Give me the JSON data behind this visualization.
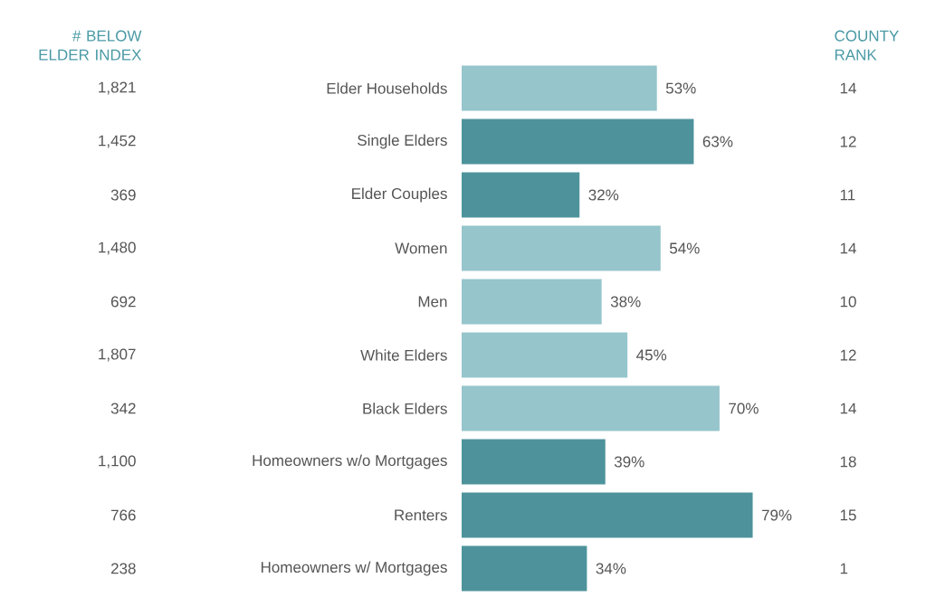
{
  "chart_data": {
    "type": "bar",
    "orientation": "horizontal",
    "categories": [
      "Elder Households",
      "Single Elders",
      "Elder Couples",
      "Women",
      "Men",
      "White Elders",
      "Black Elders",
      "Homeowners w/o Mortgages",
      "Renters",
      "Homeowners w/ Mortgages"
    ],
    "values": [
      53,
      63,
      32,
      54,
      38,
      45,
      70,
      39,
      79,
      34
    ],
    "value_labels": [
      "53%",
      "63%",
      "32%",
      "54%",
      "38%",
      "45%",
      "70%",
      "39%",
      "79%",
      "34%"
    ],
    "colors": [
      "#96c5cc",
      "#4e939c",
      "#4e939c",
      "#96c5cc",
      "#96c5cc",
      "#96c5cc",
      "#96c5cc",
      "#4e939c",
      "#4e939c",
      "#4e939c"
    ],
    "annotations": [
      "# BELOW ELDER INDEX",
      "COUNTY RANK",
      "1,821",
      "1,452",
      "369",
      "1,480",
      "692",
      "1,807",
      "342",
      "1,100",
      "766",
      "238",
      "14",
      "12",
      "11",
      "14",
      "10",
      "12",
      "14",
      "18",
      "15",
      "1"
    ]
  }
}
